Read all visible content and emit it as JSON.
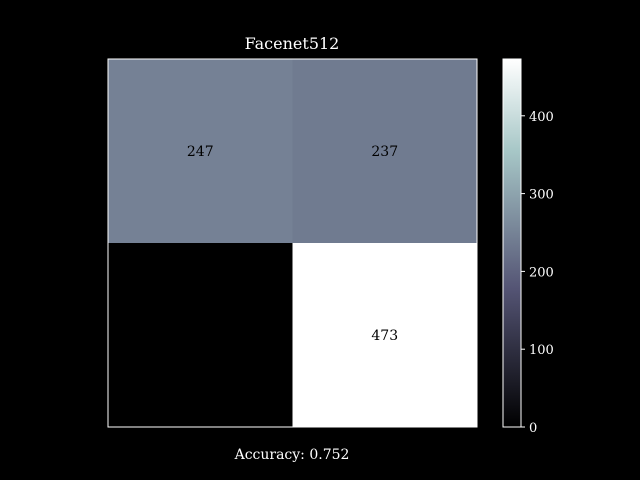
{
  "chart_data": {
    "type": "heatmap",
    "title": "Facenet512",
    "xlabel": "Accuracy: 0.752",
    "ylabel": "",
    "matrix": [
      [
        247,
        237
      ],
      [
        0,
        473
      ]
    ],
    "colorbar": {
      "colormap": "bone",
      "range": [
        0,
        473
      ],
      "ticks": [
        0,
        100,
        200,
        300,
        400
      ]
    },
    "axis_ticks_visible": false,
    "grid": false,
    "background": "#000000",
    "text_color": "#ffffff",
    "cell_text_color": "#000000"
  }
}
